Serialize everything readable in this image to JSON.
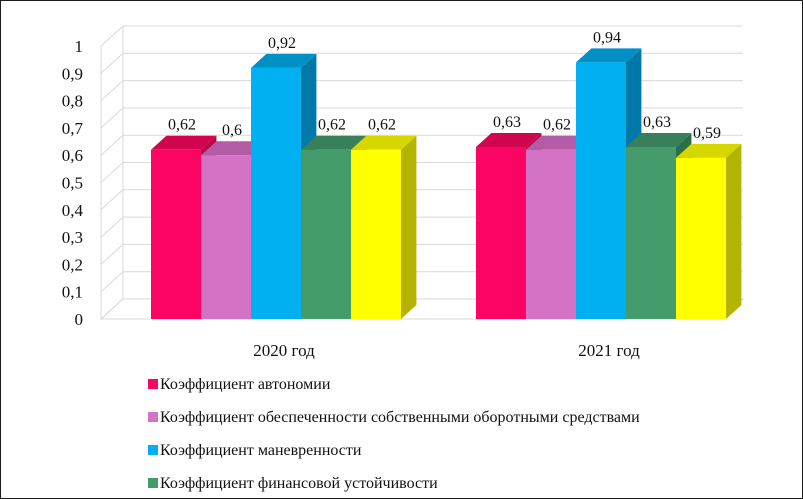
{
  "chart_data": {
    "type": "bar",
    "categories": [
      "2020 год",
      "2021 год"
    ],
    "series": [
      {
        "name": "Коэффициент автономии",
        "values": [
          0.62,
          0.63
        ],
        "labels": [
          "0,62",
          "0,63"
        ],
        "color": "#fb0562",
        "side": "#b80448",
        "top": "#d0044f"
      },
      {
        "name": "Коэффициент обеспеченности собственными оборотными средствами",
        "values": [
          0.6,
          0.62
        ],
        "labels": [
          "0,6",
          "0,62"
        ],
        "color": "#d472c6",
        "side": "#9c4f91",
        "top": "#b35ca5"
      },
      {
        "name": "Коэффициент маневренности",
        "values": [
          0.92,
          0.94
        ],
        "labels": [
          "0,92",
          "0,94"
        ],
        "color": "#00b0f0",
        "side": "#0079a8",
        "top": "#0090c6"
      },
      {
        "name": "Коэффициент финансовой устойчивости",
        "values": [
          0.62,
          0.63
        ],
        "labels": [
          "0,62",
          "0,63"
        ],
        "color": "#449c6c",
        "side": "#2c6d4a",
        "top": "#37805a"
      },
      {
        "name": "",
        "values": [
          0.62,
          0.59
        ],
        "labels": [
          "0,62",
          "0,59"
        ],
        "color": "#ffff00",
        "side": "#b3b300",
        "top": "#d7d700"
      }
    ],
    "yticks": [
      "0",
      "0,1",
      "0,2",
      "0,3",
      "0,4",
      "0,5",
      "0,6",
      "0,7",
      "0,8",
      "0,9",
      "1"
    ],
    "ylim": [
      0,
      1
    ],
    "grid": true,
    "legend_position": "bottom",
    "title": "",
    "xlabel": "",
    "ylabel": ""
  }
}
